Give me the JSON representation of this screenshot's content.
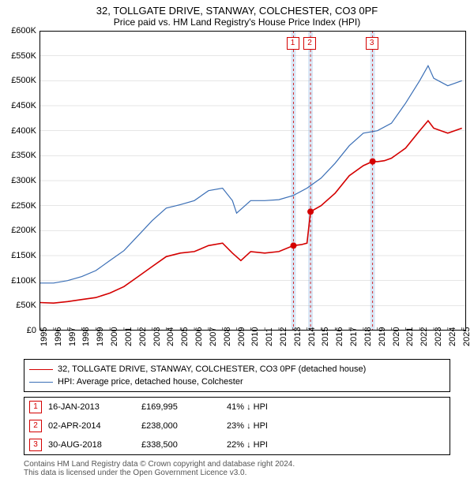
{
  "title": "32, TOLLGATE DRIVE, STANWAY, COLCHESTER, CO3 0PF",
  "subtitle": "Price paid vs. HM Land Registry's House Price Index (HPI)",
  "chart": {
    "type": "line",
    "background_color": "#ffffff",
    "grid_color": "#aaaaaa",
    "border_color": "#000000",
    "x": {
      "min": 1995.0,
      "max": 2025.3,
      "ticks": [
        1995,
        1996,
        1997,
        1998,
        1999,
        2000,
        2001,
        2002,
        2003,
        2004,
        2005,
        2006,
        2007,
        2008,
        2009,
        2010,
        2011,
        2012,
        2013,
        2014,
        2015,
        2016,
        2017,
        2018,
        2019,
        2020,
        2021,
        2022,
        2023,
        2024,
        2025
      ]
    },
    "y": {
      "min": 0,
      "max": 600000,
      "tick_step": 50000,
      "tick_labels": [
        "£0",
        "£50K",
        "£100K",
        "£150K",
        "£200K",
        "£250K",
        "£300K",
        "£350K",
        "£400K",
        "£450K",
        "£500K",
        "£550K",
        "£600K"
      ]
    },
    "series": [
      {
        "id": "property",
        "label": "32, TOLLGATE DRIVE, STANWAY, COLCHESTER, CO3 0PF (detached house)",
        "color": "#d40000",
        "line_width": 1.6,
        "points": [
          [
            1995.0,
            56000
          ],
          [
            1996.0,
            55000
          ],
          [
            1997.0,
            58000
          ],
          [
            1998.0,
            62000
          ],
          [
            1999.0,
            66000
          ],
          [
            2000.0,
            75000
          ],
          [
            2001.0,
            88000
          ],
          [
            2002.0,
            108000
          ],
          [
            2003.0,
            128000
          ],
          [
            2004.0,
            148000
          ],
          [
            2005.0,
            155000
          ],
          [
            2006.0,
            158000
          ],
          [
            2007.0,
            170000
          ],
          [
            2008.0,
            175000
          ],
          [
            2008.7,
            155000
          ],
          [
            2009.3,
            140000
          ],
          [
            2010.0,
            158000
          ],
          [
            2011.0,
            155000
          ],
          [
            2012.0,
            158000
          ],
          [
            2013.04,
            169995
          ],
          [
            2013.6,
            172000
          ],
          [
            2014.0,
            175000
          ],
          [
            2014.25,
            238000
          ],
          [
            2015.0,
            250000
          ],
          [
            2016.0,
            275000
          ],
          [
            2017.0,
            310000
          ],
          [
            2018.0,
            330000
          ],
          [
            2018.66,
            338500
          ],
          [
            2019.0,
            338000
          ],
          [
            2019.5,
            340000
          ],
          [
            2020.0,
            345000
          ],
          [
            2021.0,
            365000
          ],
          [
            2022.0,
            400000
          ],
          [
            2022.6,
            420000
          ],
          [
            2023.0,
            405000
          ],
          [
            2024.0,
            395000
          ],
          [
            2025.0,
            405000
          ]
        ]
      },
      {
        "id": "hpi",
        "label": "HPI: Average price, detached house, Colchester",
        "color": "#3b6fb6",
        "line_width": 1.2,
        "points": [
          [
            1995.0,
            95000
          ],
          [
            1996.0,
            95000
          ],
          [
            1997.0,
            100000
          ],
          [
            1998.0,
            108000
          ],
          [
            1999.0,
            120000
          ],
          [
            2000.0,
            140000
          ],
          [
            2001.0,
            160000
          ],
          [
            2002.0,
            190000
          ],
          [
            2003.0,
            220000
          ],
          [
            2004.0,
            245000
          ],
          [
            2005.0,
            252000
          ],
          [
            2006.0,
            260000
          ],
          [
            2007.0,
            280000
          ],
          [
            2008.0,
            285000
          ],
          [
            2008.7,
            260000
          ],
          [
            2009.0,
            235000
          ],
          [
            2010.0,
            260000
          ],
          [
            2011.0,
            260000
          ],
          [
            2012.0,
            262000
          ],
          [
            2013.0,
            270000
          ],
          [
            2014.0,
            285000
          ],
          [
            2015.0,
            305000
          ],
          [
            2016.0,
            335000
          ],
          [
            2017.0,
            370000
          ],
          [
            2018.0,
            395000
          ],
          [
            2019.0,
            400000
          ],
          [
            2020.0,
            415000
          ],
          [
            2021.0,
            455000
          ],
          [
            2022.0,
            500000
          ],
          [
            2022.6,
            530000
          ],
          [
            2023.0,
            505000
          ],
          [
            2024.0,
            490000
          ],
          [
            2025.0,
            500000
          ]
        ]
      }
    ],
    "sale_markers": [
      {
        "n": "1",
        "x": 2013.04,
        "y": 169995,
        "color": "#d40000",
        "band_color": "#d9e6f5"
      },
      {
        "n": "2",
        "x": 2014.25,
        "y": 238000,
        "color": "#d40000",
        "band_color": "#d9e6f5"
      },
      {
        "n": "3",
        "x": 2018.66,
        "y": 338500,
        "color": "#d40000",
        "band_color": "#d9e6f5"
      }
    ],
    "marker_radius": 4
  },
  "sales_table": {
    "rows": [
      {
        "n": "1",
        "date": "16-JAN-2013",
        "price": "£169,995",
        "diff": "41% ↓ HPI",
        "color": "#d40000"
      },
      {
        "n": "2",
        "date": "02-APR-2014",
        "price": "£238,000",
        "diff": "23% ↓ HPI",
        "color": "#d40000"
      },
      {
        "n": "3",
        "date": "30-AUG-2018",
        "price": "£338,500",
        "diff": "22% ↓ HPI",
        "color": "#d40000"
      }
    ]
  },
  "footer": {
    "line1": "Contains HM Land Registry data © Crown copyright and database right 2024.",
    "line2": "This data is licensed under the Open Government Licence v3.0."
  }
}
